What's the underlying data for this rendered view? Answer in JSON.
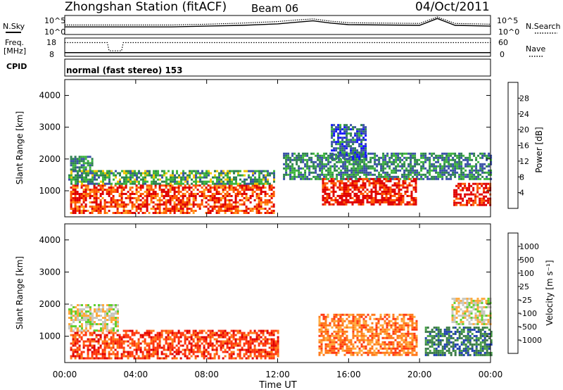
{
  "header": {
    "station": "Zhongshan Station (fitACF)",
    "beam": "Beam 06",
    "date": "04/Oct/2011"
  },
  "top_panels": {
    "nsky_label": "N.Sky",
    "nsearch_label": "N.Search",
    "noise_ticks_left": [
      "10^5",
      "10^0"
    ],
    "noise_ticks_right": [
      "10^5",
      "10^0"
    ],
    "freq_label_line1": "Freq.",
    "freq_label_line2": "[MHz]",
    "freq_ticks": [
      "18",
      "8"
    ],
    "nave_label": "Nave",
    "nave_ticks": [
      "60",
      "0"
    ],
    "cpid_label": "CPID",
    "cpid_text": "normal (fast stereo) 153"
  },
  "colorbars": {
    "power": {
      "label": "Power [dB]",
      "ticks": [
        "28",
        "24",
        "20",
        "16",
        "12",
        "8",
        "4"
      ],
      "colors": [
        "#e00000",
        "#ff5a00",
        "#ff9a1e",
        "#f0c800",
        "#3cb43c",
        "#2d8250",
        "#3a50a8",
        "#1414ff"
      ]
    },
    "velocity": {
      "label": "Velocity [m s⁻¹]",
      "ticks": [
        "1000",
        "500",
        "100",
        "25",
        "-25",
        "-100",
        "-500",
        "-1000"
      ],
      "colors": [
        "#2040b0",
        "#3a7a48",
        "#48a048",
        "#60d030",
        "#c8c8c0",
        "#ffaa3c",
        "#ff7818",
        "#ff3810",
        "#e00000"
      ]
    }
  },
  "chart_data": [
    {
      "type": "line",
      "title": "Zhongshan Station (fitACF)",
      "series": [
        {
          "name": "N.Sky",
          "x": [
            0,
            2,
            4,
            6,
            8,
            10,
            12,
            13,
            14,
            15,
            16,
            18,
            20,
            21,
            22,
            24
          ],
          "values": [
            2,
            2,
            2,
            2,
            2.2,
            2.4,
            2.8,
            3.2,
            3.6,
            3.0,
            2.6,
            2.5,
            2.4,
            4.2,
            2.4,
            2.2
          ]
        },
        {
          "name": "N.Search",
          "x": [
            0,
            2,
            4,
            6,
            8,
            10,
            12,
            13,
            14,
            15,
            16,
            18,
            20,
            21,
            22,
            24
          ],
          "values": [
            2.5,
            2.5,
            2.5,
            2.5,
            2.7,
            3.0,
            3.4,
            3.8,
            4.1,
            3.5,
            3.1,
            3.0,
            2.9,
            4.6,
            2.9,
            2.7
          ]
        }
      ],
      "xlim": [
        0,
        24
      ],
      "ylabel": "",
      "log_scale": true
    },
    {
      "type": "line",
      "series": [
        {
          "name": "Freq.",
          "x": [
            0,
            24
          ],
          "values": [
            10,
            10
          ]
        },
        {
          "name": "Nave",
          "x": [
            0,
            2.4,
            2.5,
            3.2,
            3.3,
            24
          ],
          "values": [
            45,
            45,
            18,
            18,
            45,
            45
          ]
        }
      ],
      "xlim": [
        0,
        24
      ]
    },
    {
      "type": "heatmap",
      "quantity": "Power",
      "xlabel": "",
      "ylabel": "Slant Range [km]",
      "xlim": [
        0,
        24
      ],
      "ylim": [
        180,
        4500
      ],
      "yticks": [
        1000,
        2000,
        3000,
        4000
      ],
      "regions": [
        {
          "t": [
            0.3,
            11.8
          ],
          "r": [
            300,
            1200
          ],
          "level": 26
        },
        {
          "t": [
            0.2,
            11.8
          ],
          "r": [
            1200,
            1650
          ],
          "level": 10
        },
        {
          "t": [
            0.3,
            1.6
          ],
          "r": [
            1650,
            2100
          ],
          "level": 8
        },
        {
          "t": [
            12.3,
            24
          ],
          "r": [
            1400,
            2200
          ],
          "level": 8
        },
        {
          "t": [
            14.5,
            19.8
          ],
          "r": [
            550,
            1400
          ],
          "level": 28
        },
        {
          "t": [
            21.9,
            24
          ],
          "r": [
            550,
            1250
          ],
          "level": 28
        },
        {
          "t": [
            15,
            17
          ],
          "r": [
            2000,
            3100
          ],
          "level": 5
        }
      ]
    },
    {
      "type": "heatmap",
      "quantity": "Velocity",
      "xlabel": "Time UT",
      "ylabel": "Slant Range [km]",
      "xlim": [
        0,
        24
      ],
      "ylim": [
        180,
        4500
      ],
      "yticks": [
        1000,
        2000,
        3000,
        4000
      ],
      "xticks": [
        "00:00",
        "04:00",
        "08:00",
        "12:00",
        "16:00",
        "20:00",
        "00:00"
      ],
      "regions": [
        {
          "t": [
            0.3,
            12
          ],
          "r": [
            300,
            1200
          ],
          "level": -500
        },
        {
          "t": [
            0.2,
            3
          ],
          "r": [
            1200,
            2000
          ],
          "level": 0
        },
        {
          "t": [
            14.3,
            19.8
          ],
          "r": [
            400,
            1700
          ],
          "level": -300
        },
        {
          "t": [
            20.3,
            24
          ],
          "r": [
            400,
            1300
          ],
          "level": 300
        },
        {
          "t": [
            21.8,
            24
          ],
          "r": [
            1400,
            2200
          ],
          "level": 0
        }
      ]
    }
  ]
}
